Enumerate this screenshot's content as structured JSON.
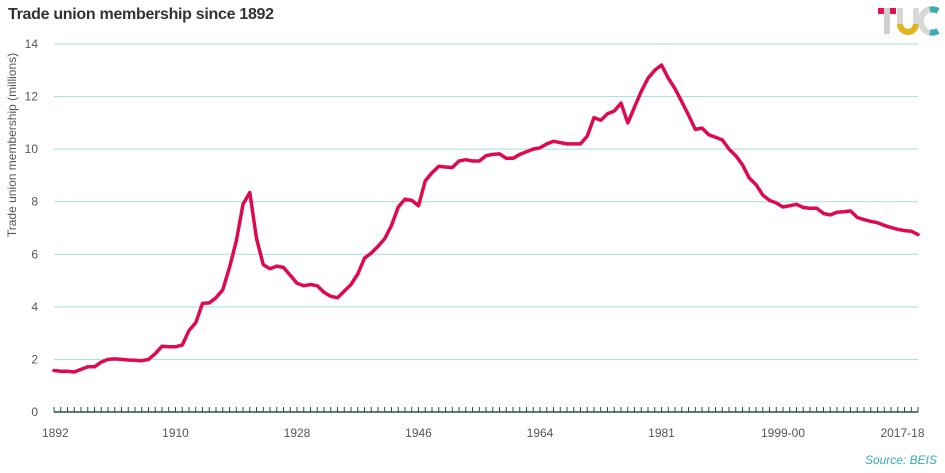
{
  "header": {
    "title": "Trade union membership since 1892",
    "logo_text": "TUC"
  },
  "footer": {
    "source": "Source:  BEIS"
  },
  "colors": {
    "line": "#dd0a4f",
    "grid": "#a8dcdc",
    "axis": "#2b4b4b",
    "text": "#555555",
    "source": "#3aaab3",
    "logo_t": "#e4134f",
    "logo_u": "#e2b419",
    "logo_c": "#3aaab3"
  },
  "chart_data": {
    "type": "line",
    "title": "Trade union membership since 1892",
    "xlabel": "",
    "ylabel": "Trade union membership  (millions)",
    "ylim": [
      0,
      14
    ],
    "yticks": [
      0,
      2,
      4,
      6,
      8,
      10,
      12,
      14
    ],
    "grid": true,
    "x_tick_labels": [
      {
        "index": 0,
        "label": "1892"
      },
      {
        "index": 18,
        "label": "1910"
      },
      {
        "index": 36,
        "label": "1928"
      },
      {
        "index": 54,
        "label": "1946"
      },
      {
        "index": 72,
        "label": "1964"
      },
      {
        "index": 90,
        "label": "1981"
      },
      {
        "index": 108,
        "label": "1999-00"
      },
      {
        "index": 126,
        "label": "2017-18"
      }
    ],
    "series": [
      {
        "values": [
          1.58,
          1.55,
          1.55,
          1.52,
          1.62,
          1.72,
          1.72,
          1.9,
          2.0,
          2.02,
          2.0,
          1.98,
          1.97,
          1.95,
          2.0,
          2.22,
          2.5,
          2.48,
          2.48,
          2.55,
          3.1,
          3.4,
          4.13,
          4.15,
          4.35,
          4.65,
          5.5,
          6.5,
          7.9,
          8.35,
          6.6,
          5.6,
          5.45,
          5.55,
          5.5,
          5.2,
          4.9,
          4.8,
          4.85,
          4.8,
          4.55,
          4.4,
          4.35,
          4.6,
          4.85,
          5.25,
          5.85,
          6.05,
          6.3,
          6.6,
          7.1,
          7.8,
          8.1,
          8.05,
          7.85,
          8.8,
          9.1,
          9.35,
          9.32,
          9.3,
          9.55,
          9.6,
          9.55,
          9.55,
          9.75,
          9.8,
          9.82,
          9.65,
          9.65,
          9.8,
          9.9,
          10.0,
          10.05,
          10.2,
          10.3,
          10.25,
          10.2,
          10.2,
          10.2,
          10.5,
          11.2,
          11.1,
          11.35,
          11.45,
          11.75,
          11.0,
          11.6,
          12.2,
          12.7,
          13.0,
          13.2,
          12.7,
          12.3,
          11.8,
          11.3,
          10.75,
          10.8,
          10.55,
          10.45,
          10.35,
          10.0,
          9.75,
          9.4,
          8.9,
          8.65,
          8.25,
          8.05,
          7.95,
          7.8,
          7.85,
          7.9,
          7.78,
          7.75,
          7.75,
          7.55,
          7.5,
          7.6,
          7.62,
          7.65,
          7.4,
          7.32,
          7.25,
          7.2,
          7.1,
          7.02,
          6.95,
          6.9,
          6.88,
          6.75
        ]
      }
    ]
  }
}
